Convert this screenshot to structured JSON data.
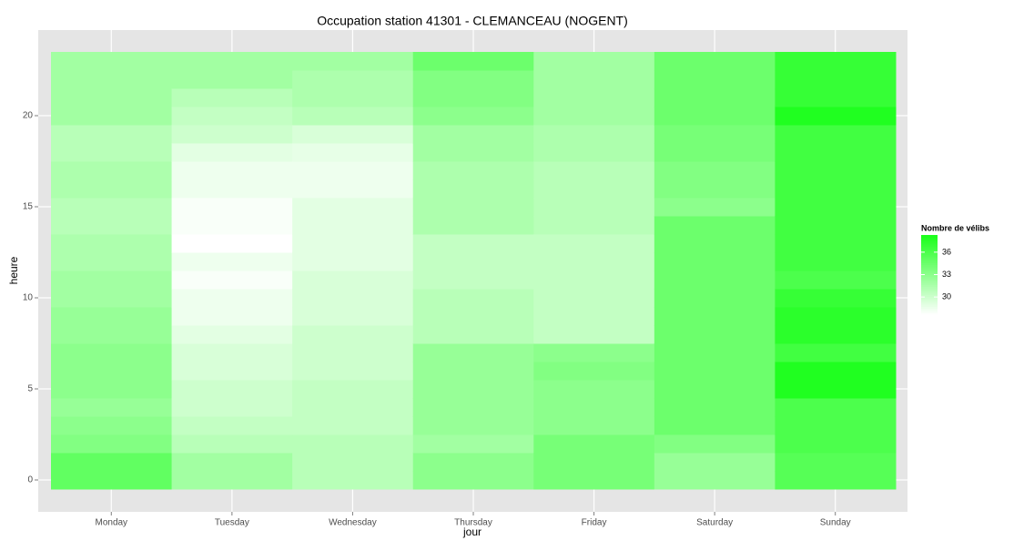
{
  "chart_data": {
    "type": "heatmap",
    "title": "Occupation station 41301 - CLEMANCEAU (NOGENT)",
    "x_label": "jour",
    "y_label": "heure",
    "categories": [
      "Monday",
      "Tuesday",
      "Wednesday",
      "Thursday",
      "Friday",
      "Saturday",
      "Sunday"
    ],
    "y": [
      0,
      1,
      2,
      3,
      4,
      5,
      6,
      7,
      8,
      9,
      10,
      11,
      12,
      13,
      14,
      15,
      16,
      17,
      18,
      19,
      20,
      21,
      22,
      23
    ],
    "values": [
      [
        35,
        35,
        33.5,
        33,
        32.5,
        33,
        33,
        33,
        32.5,
        32.5,
        32,
        32,
        31.5,
        31.5,
        31,
        31,
        31.5,
        31.5,
        31,
        31,
        32,
        32,
        32,
        32
      ],
      [
        32,
        32,
        31,
        30.5,
        30,
        30,
        29.5,
        29.5,
        29,
        28.5,
        28.5,
        28,
        28.5,
        27.7,
        28,
        28,
        28.5,
        28.5,
        29,
        30,
        30.5,
        31,
        32,
        32
      ],
      [
        31,
        31,
        31,
        30.5,
        30.5,
        30.5,
        30,
        30,
        30,
        29.5,
        29.5,
        29.5,
        29,
        29,
        29,
        29,
        28.5,
        28.5,
        28.8,
        29.5,
        31,
        31.5,
        31.5,
        32
      ],
      [
        33,
        33,
        32,
        32.5,
        32.5,
        32.5,
        32.5,
        32.5,
        31,
        31,
        31,
        30.5,
        30.5,
        30.5,
        31.5,
        31.5,
        31.5,
        31.5,
        32,
        32,
        33,
        33.5,
        33.5,
        34.5
      ],
      [
        34,
        34,
        34,
        33,
        33,
        33,
        33.5,
        33,
        30.5,
        30.5,
        30.5,
        30.5,
        30.5,
        30.5,
        31,
        31,
        31,
        31,
        31.5,
        31.5,
        32,
        32,
        32,
        32
      ],
      [
        32.5,
        32.5,
        33.5,
        34.5,
        34.5,
        34.5,
        34.5,
        34.5,
        34.5,
        34.5,
        34.5,
        34.5,
        34.5,
        34.5,
        34.5,
        33,
        33.5,
        33.5,
        34,
        34,
        34.5,
        34.5,
        34.5,
        34.5
      ],
      [
        35.5,
        35.5,
        36,
        36,
        36,
        38,
        38,
        36.5,
        37.5,
        37.5,
        37,
        36,
        36.5,
        36.5,
        36.5,
        36.5,
        36.5,
        36.5,
        36.5,
        36.5,
        38,
        37,
        37,
        37
      ]
    ],
    "ylim": [
      -1.75,
      24.7
    ],
    "yticks": [
      0,
      5,
      10,
      15,
      20
    ],
    "legend_title": "Nombre de vélibs",
    "colorlim": [
      27.7,
      38.3
    ],
    "colorticks": [
      30,
      33,
      36
    ],
    "low_color": "#ffffff",
    "high_color": "#1aff1a",
    "grid": true
  }
}
